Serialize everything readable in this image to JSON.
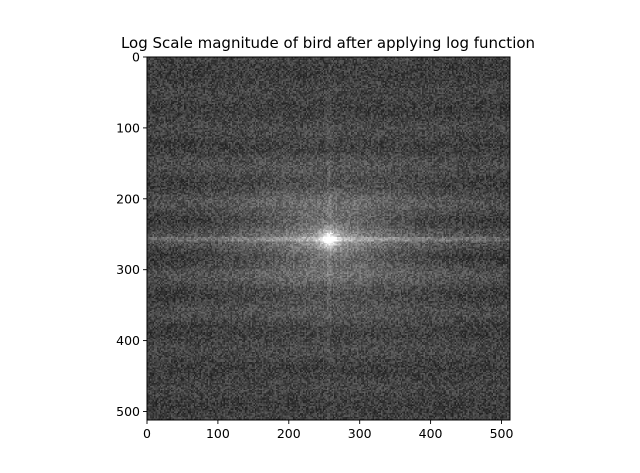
{
  "chart_data": {
    "type": "heatmap",
    "title": "Log Scale magnitude of bird after applying log function",
    "xlabel": "",
    "ylabel": "",
    "colormap": "gray",
    "image_size": [
      512,
      512
    ],
    "xlim": [
      0,
      512
    ],
    "ylim": [
      512,
      0
    ],
    "x_ticks": [
      0,
      100,
      200,
      300,
      400,
      500
    ],
    "y_ticks": [
      0,
      100,
      200,
      300,
      400,
      500
    ],
    "grid": false,
    "legend": false
  }
}
